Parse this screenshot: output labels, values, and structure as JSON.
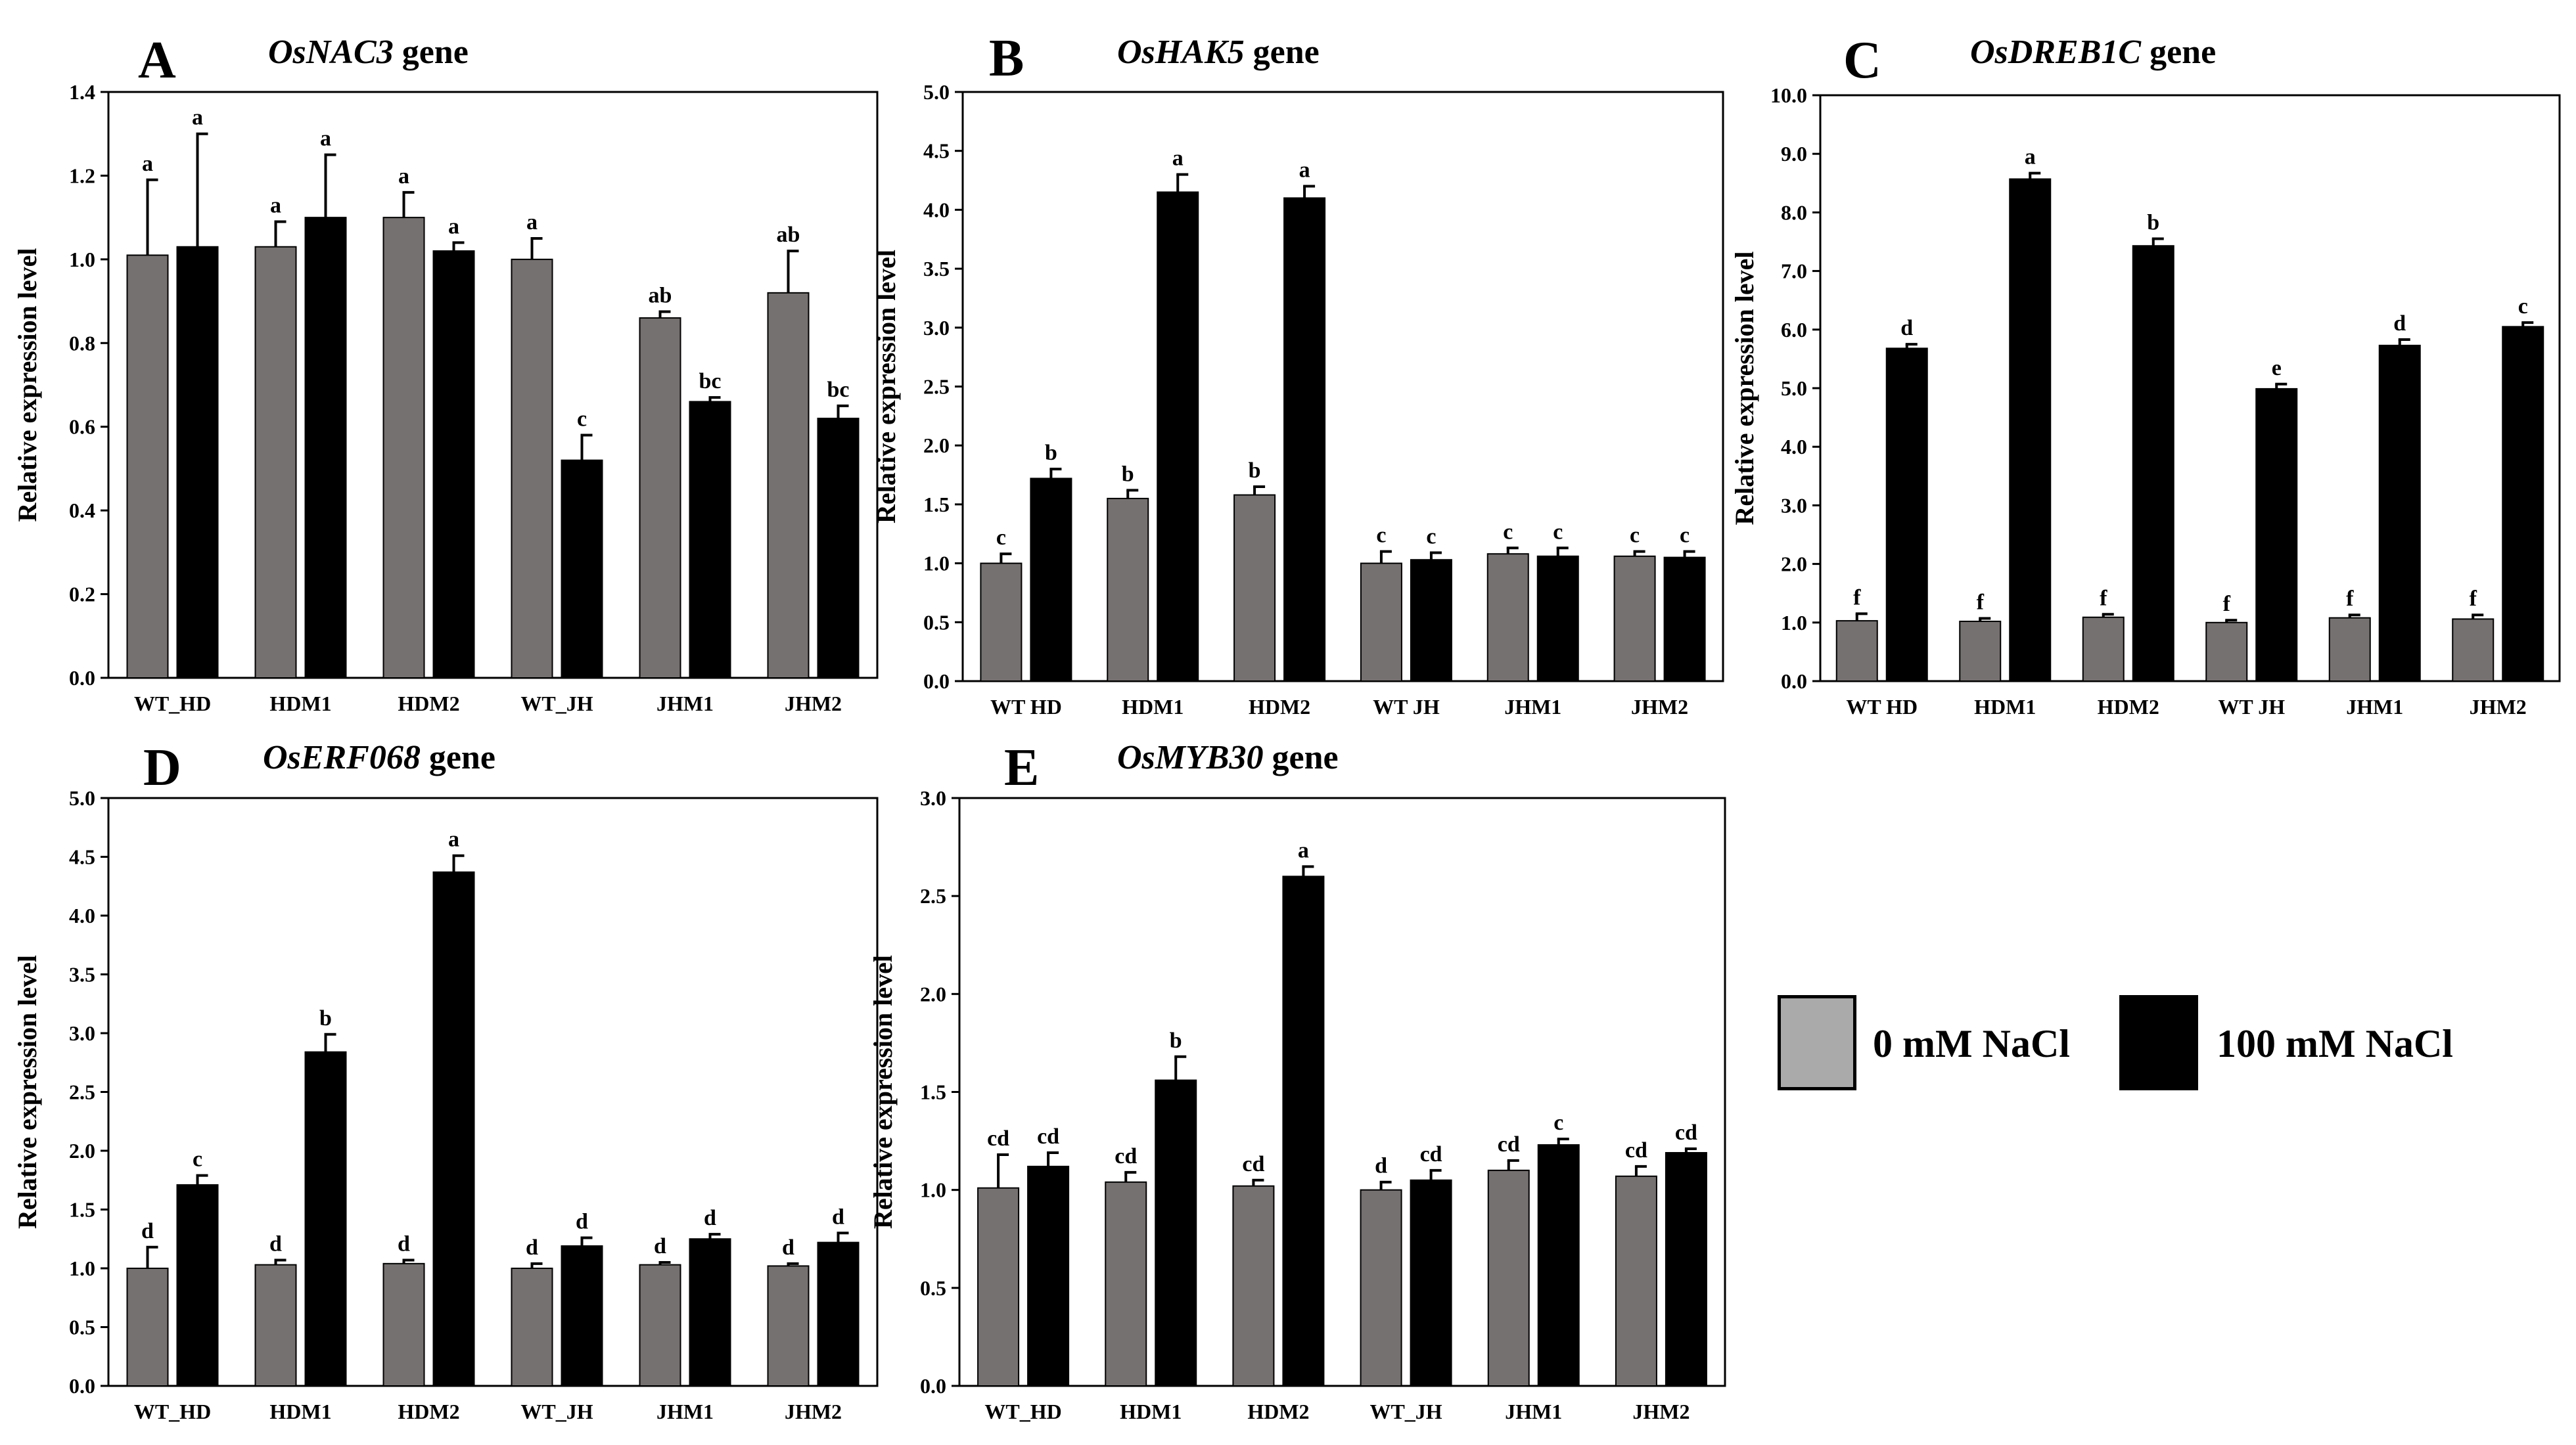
{
  "colors": {
    "control": "#767171",
    "salt": "#000000",
    "legend_control": "#aaaaaa"
  },
  "legend": {
    "items": [
      {
        "label": "0 mM NaCl",
        "color": "#aaaaaa"
      },
      {
        "label": "100 mM NaCl",
        "color": "#000000"
      }
    ]
  },
  "chart_data": [
    {
      "type": "bar",
      "panel": "A",
      "gene": "OsNAC3",
      "suffix": " gene",
      "ylabel": "Relative expression level",
      "ylim": [
        0,
        1.4
      ],
      "ystep": 0.2,
      "ydecimals": 1,
      "categories": [
        "WT_HD",
        "HDM1",
        "HDM2",
        "WT_JH",
        "JHM1",
        "JHM2"
      ],
      "series": [
        {
          "name": "0 mM NaCl",
          "values": [
            1.01,
            1.03,
            1.1,
            1.0,
            0.86,
            0.92
          ],
          "errors": [
            0.18,
            0.06,
            0.06,
            0.05,
            0.015,
            0.1
          ],
          "letters": [
            "a",
            "a",
            "a",
            "a",
            "ab",
            "ab"
          ]
        },
        {
          "name": "100 mM NaCl",
          "values": [
            1.03,
            1.1,
            1.02,
            0.52,
            0.66,
            0.62
          ],
          "errors": [
            0.27,
            0.15,
            0.02,
            0.06,
            0.01,
            0.03
          ],
          "letters": [
            "a",
            "a",
            "a",
            "c",
            "bc",
            "bc"
          ]
        }
      ]
    },
    {
      "type": "bar",
      "panel": "B",
      "gene": "OsHAK5",
      "suffix": " gene",
      "ylabel": "Relative expression level",
      "ylim": [
        0,
        5.0
      ],
      "ystep": 0.5,
      "ydecimals": 1,
      "categories": [
        "WT HD",
        "HDM1",
        "HDM2",
        "WT JH",
        "JHM1",
        "JHM2"
      ],
      "series": [
        {
          "name": "0 mM NaCl",
          "values": [
            1.0,
            1.55,
            1.58,
            1.0,
            1.08,
            1.06
          ],
          "errors": [
            0.08,
            0.07,
            0.07,
            0.1,
            0.05,
            0.04
          ],
          "letters": [
            "c",
            "b",
            "b",
            "c",
            "c",
            "c"
          ]
        },
        {
          "name": "100 mM NaCl",
          "values": [
            1.72,
            4.15,
            4.1,
            1.03,
            1.06,
            1.05
          ],
          "errors": [
            0.08,
            0.15,
            0.1,
            0.06,
            0.07,
            0.05
          ],
          "letters": [
            "b",
            "a",
            "a",
            "c",
            "c",
            "c"
          ]
        }
      ]
    },
    {
      "type": "bar",
      "panel": "C",
      "gene": "OsDREB1C",
      "suffix": " gene",
      "ylabel": "Relative expression level",
      "ylim": [
        0,
        10.0
      ],
      "ystep": 1.0,
      "ydecimals": 1,
      "categories": [
        "WT HD",
        "HDM1",
        "HDM2",
        "WT JH",
        "JHM1",
        "JHM2"
      ],
      "series": [
        {
          "name": "0 mM NaCl",
          "values": [
            1.03,
            1.02,
            1.09,
            1.0,
            1.08,
            1.06
          ],
          "errors": [
            0.12,
            0.05,
            0.05,
            0.04,
            0.05,
            0.07
          ],
          "letters": [
            "f",
            "f",
            "f",
            "f",
            "f",
            "f"
          ]
        },
        {
          "name": "100 mM NaCl",
          "values": [
            5.68,
            8.57,
            7.43,
            4.99,
            5.73,
            6.05
          ],
          "errors": [
            0.07,
            0.1,
            0.12,
            0.08,
            0.1,
            0.07
          ],
          "letters": [
            "d",
            "a",
            "b",
            "e",
            "d",
            "c"
          ]
        }
      ]
    },
    {
      "type": "bar",
      "panel": "D",
      "gene": "OsERF068",
      "suffix": " gene",
      "ylabel": "Relative expression level",
      "ylim": [
        0,
        5.0
      ],
      "ystep": 0.5,
      "ydecimals": 1,
      "categories": [
        "WT_HD",
        "HDM1",
        "HDM2",
        "WT_JH",
        "JHM1",
        "JHM2"
      ],
      "series": [
        {
          "name": "0 mM NaCl",
          "values": [
            1.0,
            1.03,
            1.04,
            1.0,
            1.03,
            1.02
          ],
          "errors": [
            0.18,
            0.04,
            0.03,
            0.04,
            0.02,
            0.02
          ],
          "letters": [
            "d",
            "d",
            "d",
            "d",
            "d",
            "d"
          ]
        },
        {
          "name": "100 mM NaCl",
          "values": [
            1.71,
            2.84,
            4.37,
            1.19,
            1.25,
            1.22
          ],
          "errors": [
            0.08,
            0.15,
            0.14,
            0.07,
            0.04,
            0.08
          ],
          "letters": [
            "c",
            "b",
            "a",
            "d",
            "d",
            "d"
          ]
        }
      ]
    },
    {
      "type": "bar",
      "panel": "E",
      "gene": "OsMYB30",
      "suffix": " gene",
      "ylabel": "Relative expression level",
      "ylim": [
        0,
        3.0
      ],
      "ystep": 0.5,
      "ydecimals": 1,
      "categories": [
        "WT_HD",
        "HDM1",
        "HDM2",
        "WT_JH",
        "JHM1",
        "JHM2"
      ],
      "series": [
        {
          "name": "0 mM NaCl",
          "values": [
            1.01,
            1.04,
            1.02,
            1.0,
            1.1,
            1.07
          ],
          "errors": [
            0.17,
            0.05,
            0.03,
            0.04,
            0.05,
            0.05
          ],
          "letters": [
            "cd",
            "cd",
            "cd",
            "d",
            "cd",
            "cd"
          ]
        },
        {
          "name": "100 mM NaCl",
          "values": [
            1.12,
            1.56,
            2.6,
            1.05,
            1.23,
            1.19
          ],
          "errors": [
            0.07,
            0.12,
            0.05,
            0.05,
            0.03,
            0.02
          ],
          "letters": [
            "cd",
            "b",
            "a",
            "cd",
            "c",
            "cd"
          ]
        }
      ]
    }
  ]
}
